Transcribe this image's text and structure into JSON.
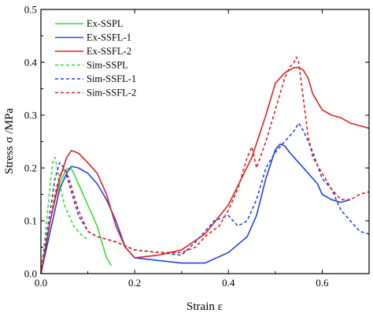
{
  "chart_data": {
    "type": "line",
    "xlabel": "Strain  ε",
    "ylabel": "Stress σ /MPa",
    "xlim": [
      0,
      0.7
    ],
    "ylim": [
      0,
      0.5
    ],
    "x_ticks": [
      0.0,
      0.2,
      0.4,
      0.6
    ],
    "x_tick_labels": [
      "0.0",
      "0.2",
      "0.4",
      "0.6"
    ],
    "y_ticks": [
      0.0,
      0.1,
      0.2,
      0.3,
      0.4,
      0.5
    ],
    "y_tick_labels": [
      "0.0",
      "0.1",
      "0.2",
      "0.3",
      "0.4",
      "0.5"
    ],
    "grid": false,
    "legend_position": "top-left",
    "series": [
      {
        "name": "Ex-SSPL",
        "color": "#33dd33",
        "dash": "solid",
        "x": [
          0.0,
          0.01,
          0.02,
          0.03,
          0.04,
          0.05,
          0.055,
          0.06,
          0.065,
          0.07,
          0.08,
          0.09,
          0.1,
          0.11,
          0.12,
          0.13,
          0.14,
          0.15
        ],
        "y": [
          0.0,
          0.05,
          0.1,
          0.14,
          0.17,
          0.19,
          0.197,
          0.2,
          0.198,
          0.19,
          0.17,
          0.15,
          0.13,
          0.11,
          0.09,
          0.06,
          0.03,
          0.015
        ]
      },
      {
        "name": "Ex-SSFL-1",
        "color": "#2244dd",
        "dash": "solid",
        "x": [
          0.0,
          0.02,
          0.04,
          0.055,
          0.065,
          0.08,
          0.1,
          0.12,
          0.14,
          0.16,
          0.18,
          0.2,
          0.25,
          0.3,
          0.35,
          0.4,
          0.44,
          0.46,
          0.48,
          0.5,
          0.51,
          0.52,
          0.53,
          0.55,
          0.57,
          0.59,
          0.6,
          0.62,
          0.64,
          0.66
        ],
        "y": [
          0.0,
          0.08,
          0.16,
          0.19,
          0.203,
          0.2,
          0.19,
          0.17,
          0.14,
          0.1,
          0.05,
          0.03,
          0.025,
          0.02,
          0.02,
          0.04,
          0.07,
          0.11,
          0.18,
          0.235,
          0.245,
          0.242,
          0.23,
          0.21,
          0.19,
          0.17,
          0.15,
          0.14,
          0.135,
          0.14
        ]
      },
      {
        "name": "Ex-SSFL-2",
        "color": "#dd2222",
        "dash": "solid",
        "x": [
          0.0,
          0.02,
          0.04,
          0.055,
          0.065,
          0.08,
          0.1,
          0.12,
          0.14,
          0.16,
          0.18,
          0.2,
          0.25,
          0.3,
          0.35,
          0.4,
          0.45,
          0.48,
          0.5,
          0.52,
          0.54,
          0.55,
          0.56,
          0.57,
          0.58,
          0.6,
          0.62,
          0.64,
          0.66,
          0.68,
          0.7
        ],
        "y": [
          0.0,
          0.1,
          0.18,
          0.22,
          0.233,
          0.228,
          0.21,
          0.19,
          0.15,
          0.09,
          0.05,
          0.03,
          0.035,
          0.045,
          0.075,
          0.13,
          0.22,
          0.3,
          0.36,
          0.38,
          0.39,
          0.39,
          0.385,
          0.37,
          0.34,
          0.31,
          0.3,
          0.295,
          0.285,
          0.28,
          0.275
        ]
      },
      {
        "name": "Sim-SSPL",
        "color": "#33dd33",
        "dash": "dashed",
        "x": [
          0.0,
          0.01,
          0.02,
          0.025,
          0.03,
          0.035,
          0.04,
          0.045,
          0.05,
          0.06,
          0.07,
          0.08,
          0.09,
          0.1
        ],
        "y": [
          0.0,
          0.08,
          0.17,
          0.21,
          0.22,
          0.2,
          0.17,
          0.15,
          0.13,
          0.11,
          0.09,
          0.08,
          0.07,
          0.065
        ]
      },
      {
        "name": "Sim-SSFL-1",
        "color": "#2244dd",
        "dash": "dashed",
        "x": [
          0.0,
          0.01,
          0.02,
          0.03,
          0.04,
          0.05,
          0.06,
          0.08,
          0.1,
          0.12,
          0.14,
          0.16,
          0.2,
          0.25,
          0.3,
          0.33,
          0.35,
          0.37,
          0.4,
          0.42,
          0.44,
          0.46,
          0.48,
          0.5,
          0.52,
          0.54,
          0.55,
          0.56,
          0.58,
          0.6,
          0.62,
          0.64,
          0.66,
          0.68,
          0.7
        ],
        "y": [
          0.0,
          0.06,
          0.12,
          0.18,
          0.21,
          0.2,
          0.17,
          0.11,
          0.08,
          0.07,
          0.065,
          0.06,
          0.045,
          0.04,
          0.035,
          0.06,
          0.08,
          0.1,
          0.11,
          0.09,
          0.1,
          0.14,
          0.2,
          0.23,
          0.25,
          0.27,
          0.285,
          0.27,
          0.23,
          0.18,
          0.16,
          0.12,
          0.1,
          0.08,
          0.075
        ]
      },
      {
        "name": "Sim-SSFL-2",
        "color": "#dd2222",
        "dash": "dashed",
        "x": [
          0.0,
          0.01,
          0.02,
          0.03,
          0.04,
          0.05,
          0.06,
          0.08,
          0.1,
          0.12,
          0.14,
          0.16,
          0.2,
          0.25,
          0.3,
          0.33,
          0.35,
          0.38,
          0.4,
          0.42,
          0.44,
          0.45,
          0.46,
          0.48,
          0.5,
          0.52,
          0.53,
          0.54,
          0.545,
          0.55,
          0.56,
          0.57,
          0.58,
          0.6,
          0.62,
          0.64,
          0.66,
          0.68,
          0.7
        ],
        "y": [
          0.0,
          0.05,
          0.1,
          0.15,
          0.185,
          0.2,
          0.18,
          0.12,
          0.08,
          0.07,
          0.065,
          0.06,
          0.045,
          0.04,
          0.04,
          0.05,
          0.07,
          0.09,
          0.12,
          0.16,
          0.22,
          0.24,
          0.2,
          0.25,
          0.31,
          0.37,
          0.39,
          0.4,
          0.41,
          0.4,
          0.33,
          0.26,
          0.22,
          0.19,
          0.16,
          0.14,
          0.14,
          0.15,
          0.155
        ]
      }
    ]
  }
}
